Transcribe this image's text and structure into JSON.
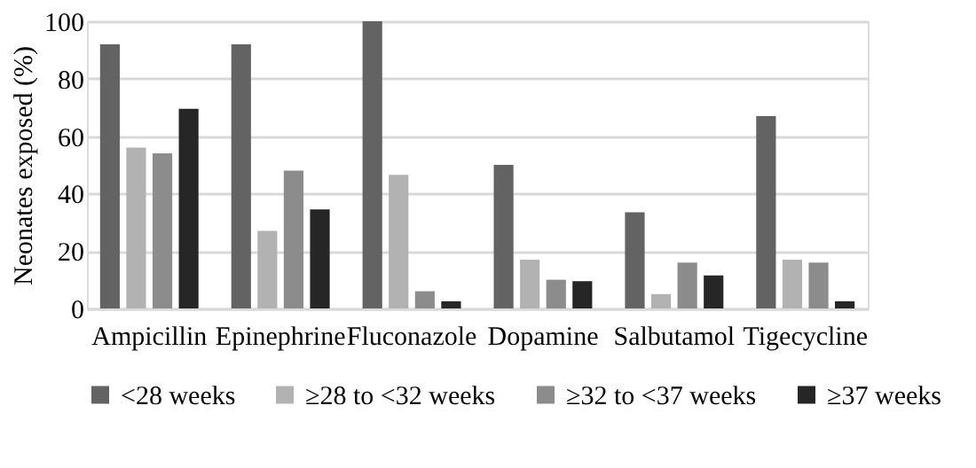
{
  "chart_data": {
    "type": "bar",
    "ylabel": "Neonates exposed (%)",
    "categories": [
      "Ampicillin",
      "Epinephrine",
      "Fluconazole",
      "Dopamine",
      "Salbutamol",
      "Tigecycline"
    ],
    "series": [
      {
        "name": "<28 weeks",
        "color": "#636363",
        "values": [
          92,
          92,
          100,
          50,
          33.5,
          67
        ]
      },
      {
        "name": "≥28 to <32 weeks",
        "color": "#b2b2b2",
        "values": [
          56,
          27,
          46.5,
          17,
          5,
          17
        ]
      },
      {
        "name": "≥32 to <37 weeks",
        "color": "#8c8c8c",
        "values": [
          54,
          48,
          6,
          10,
          16,
          16
        ]
      },
      {
        "name": "≥37 weeks",
        "color": "#262626",
        "values": [
          69.5,
          34.5,
          2.5,
          9.5,
          11.5,
          2.5
        ]
      }
    ],
    "ylim": [
      0,
      100
    ],
    "yticks": [
      0,
      20,
      40,
      60,
      80,
      100
    ],
    "grid": "y",
    "legend": "bottom"
  }
}
